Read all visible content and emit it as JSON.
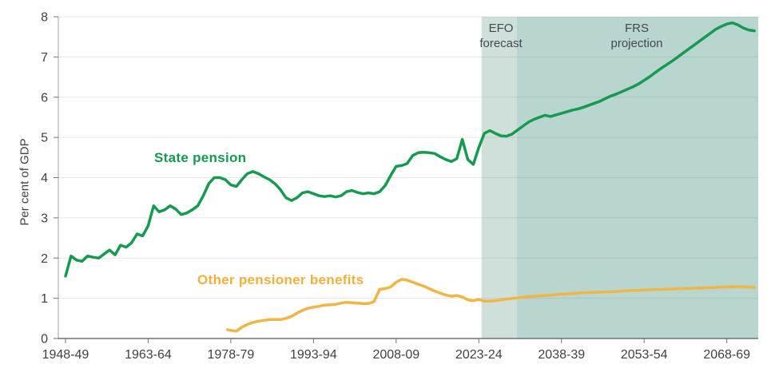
{
  "colors": {
    "state_pension_line": "#169a4f",
    "other_benefits_line": "#f0b545",
    "efo_band": "#cfe0db",
    "frs_band": "#b8d6cf",
    "gridline": "#e9eaec",
    "axis_line": "#6f7378",
    "y_axis_line": "#9fa2a7",
    "tick_text": "#3e4147",
    "region_label_text": "#43474f"
  },
  "chart_data": {
    "type": "line",
    "title": "",
    "ylabel": "Per cent of GDP",
    "xlabel": "",
    "ylim": [
      0,
      8
    ],
    "yticks": [
      0,
      1,
      2,
      3,
      4,
      5,
      6,
      7,
      8
    ],
    "x_domain": [
      1946.7,
      2073.7
    ],
    "grid": "horizontal",
    "legend_position": "inline-labels",
    "xticks": [
      {
        "year": 1948,
        "label": "1948-49"
      },
      {
        "year": 1963,
        "label": "1963-64"
      },
      {
        "year": 1978,
        "label": "1978-79"
      },
      {
        "year": 1993,
        "label": "1993-94"
      },
      {
        "year": 2008,
        "label": "2008-09"
      },
      {
        "year": 2023,
        "label": "2023-24"
      },
      {
        "year": 2038,
        "label": "2038-39"
      },
      {
        "year": 2053,
        "label": "2053-54"
      },
      {
        "year": 2068,
        "label": "2068-69"
      }
    ],
    "regions": [
      {
        "name": "EFO forecast",
        "label": "EFO\nforecast",
        "from": 2023.5,
        "to": 2029.9,
        "color": "#cfe0db"
      },
      {
        "name": "FRS projection",
        "label": "FRS\nprojection",
        "from": 2029.9,
        "to": 2073.7,
        "color": "#b8d6cf"
      }
    ],
    "series": [
      {
        "name": "State pension",
        "color": "#169a4f",
        "points": [
          [
            1948,
            1.55
          ],
          [
            1949,
            2.05
          ],
          [
            1950,
            1.95
          ],
          [
            1951,
            1.92
          ],
          [
            1952,
            2.05
          ],
          [
            1953,
            2.02
          ],
          [
            1954,
            2.0
          ],
          [
            1955,
            2.1
          ],
          [
            1956,
            2.2
          ],
          [
            1957,
            2.08
          ],
          [
            1958,
            2.32
          ],
          [
            1959,
            2.27
          ],
          [
            1960,
            2.38
          ],
          [
            1961,
            2.6
          ],
          [
            1962,
            2.55
          ],
          [
            1963,
            2.8
          ],
          [
            1964,
            3.3
          ],
          [
            1965,
            3.15
          ],
          [
            1966,
            3.2
          ],
          [
            1967,
            3.3
          ],
          [
            1968,
            3.22
          ],
          [
            1969,
            3.08
          ],
          [
            1970,
            3.12
          ],
          [
            1971,
            3.2
          ],
          [
            1972,
            3.3
          ],
          [
            1973,
            3.55
          ],
          [
            1974,
            3.85
          ],
          [
            1975,
            4.0
          ],
          [
            1976,
            4.0
          ],
          [
            1977,
            3.95
          ],
          [
            1978,
            3.82
          ],
          [
            1979,
            3.78
          ],
          [
            1980,
            3.95
          ],
          [
            1981,
            4.1
          ],
          [
            1982,
            4.15
          ],
          [
            1983,
            4.1
          ],
          [
            1984,
            4.02
          ],
          [
            1985,
            3.95
          ],
          [
            1986,
            3.85
          ],
          [
            1987,
            3.7
          ],
          [
            1988,
            3.5
          ],
          [
            1989,
            3.43
          ],
          [
            1990,
            3.5
          ],
          [
            1991,
            3.62
          ],
          [
            1992,
            3.65
          ],
          [
            1993,
            3.6
          ],
          [
            1994,
            3.55
          ],
          [
            1995,
            3.53
          ],
          [
            1996,
            3.55
          ],
          [
            1997,
            3.52
          ],
          [
            1998,
            3.55
          ],
          [
            1999,
            3.65
          ],
          [
            2000,
            3.68
          ],
          [
            2001,
            3.63
          ],
          [
            2002,
            3.6
          ],
          [
            2003,
            3.62
          ],
          [
            2004,
            3.6
          ],
          [
            2005,
            3.65
          ],
          [
            2006,
            3.8
          ],
          [
            2007,
            4.05
          ],
          [
            2008,
            4.28
          ],
          [
            2009,
            4.3
          ],
          [
            2010,
            4.35
          ],
          [
            2011,
            4.55
          ],
          [
            2012,
            4.62
          ],
          [
            2013,
            4.63
          ],
          [
            2014,
            4.62
          ],
          [
            2015,
            4.6
          ],
          [
            2016,
            4.52
          ],
          [
            2017,
            4.45
          ],
          [
            2018,
            4.4
          ],
          [
            2019,
            4.47
          ],
          [
            2020,
            4.95
          ],
          [
            2021,
            4.45
          ],
          [
            2022,
            4.33
          ],
          [
            2023,
            4.75
          ],
          [
            2024,
            5.1
          ],
          [
            2025,
            5.17
          ],
          [
            2026,
            5.1
          ],
          [
            2027,
            5.04
          ],
          [
            2028,
            5.03
          ],
          [
            2029,
            5.08
          ],
          [
            2030,
            5.18
          ],
          [
            2031,
            5.28
          ],
          [
            2032,
            5.38
          ],
          [
            2033,
            5.45
          ],
          [
            2034,
            5.5
          ],
          [
            2035,
            5.55
          ],
          [
            2036,
            5.52
          ],
          [
            2037,
            5.56
          ],
          [
            2038,
            5.6
          ],
          [
            2039,
            5.64
          ],
          [
            2040,
            5.68
          ],
          [
            2041,
            5.71
          ],
          [
            2042,
            5.75
          ],
          [
            2043,
            5.8
          ],
          [
            2044,
            5.85
          ],
          [
            2045,
            5.9
          ],
          [
            2046,
            5.97
          ],
          [
            2047,
            6.03
          ],
          [
            2048,
            6.08
          ],
          [
            2049,
            6.14
          ],
          [
            2050,
            6.2
          ],
          [
            2051,
            6.26
          ],
          [
            2052,
            6.33
          ],
          [
            2053,
            6.42
          ],
          [
            2054,
            6.51
          ],
          [
            2055,
            6.61
          ],
          [
            2056,
            6.71
          ],
          [
            2057,
            6.8
          ],
          [
            2058,
            6.89
          ],
          [
            2059,
            6.99
          ],
          [
            2060,
            7.09
          ],
          [
            2061,
            7.19
          ],
          [
            2062,
            7.29
          ],
          [
            2063,
            7.39
          ],
          [
            2064,
            7.49
          ],
          [
            2065,
            7.59
          ],
          [
            2066,
            7.69
          ],
          [
            2067,
            7.76
          ],
          [
            2068,
            7.82
          ],
          [
            2069,
            7.85
          ],
          [
            2070,
            7.8
          ],
          [
            2071,
            7.72
          ],
          [
            2072,
            7.67
          ],
          [
            2073,
            7.65
          ]
        ]
      },
      {
        "name": "Other pensioner benefits",
        "color": "#f0b545",
        "points": [
          [
            1977.4,
            0.22
          ],
          [
            1978,
            0.2
          ],
          [
            1979,
            0.18
          ],
          [
            1980,
            0.28
          ],
          [
            1981,
            0.35
          ],
          [
            1982,
            0.4
          ],
          [
            1983,
            0.43
          ],
          [
            1984,
            0.45
          ],
          [
            1985,
            0.47
          ],
          [
            1986,
            0.47
          ],
          [
            1987,
            0.47
          ],
          [
            1988,
            0.5
          ],
          [
            1989,
            0.55
          ],
          [
            1990,
            0.63
          ],
          [
            1991,
            0.7
          ],
          [
            1992,
            0.75
          ],
          [
            1993,
            0.78
          ],
          [
            1994,
            0.8
          ],
          [
            1995,
            0.83
          ],
          [
            1996,
            0.84
          ],
          [
            1997,
            0.85
          ],
          [
            1998,
            0.88
          ],
          [
            1999,
            0.9
          ],
          [
            2000,
            0.89
          ],
          [
            2001,
            0.88
          ],
          [
            2002,
            0.87
          ],
          [
            2003,
            0.87
          ],
          [
            2004,
            0.92
          ],
          [
            2005,
            1.22
          ],
          [
            2006,
            1.24
          ],
          [
            2007,
            1.28
          ],
          [
            2008,
            1.4
          ],
          [
            2009,
            1.47
          ],
          [
            2010,
            1.45
          ],
          [
            2011,
            1.4
          ],
          [
            2012,
            1.35
          ],
          [
            2013,
            1.3
          ],
          [
            2014,
            1.24
          ],
          [
            2015,
            1.18
          ],
          [
            2016,
            1.13
          ],
          [
            2017,
            1.08
          ],
          [
            2018,
            1.05
          ],
          [
            2019,
            1.07
          ],
          [
            2020,
            1.03
          ],
          [
            2021,
            0.96
          ],
          [
            2022,
            0.94
          ],
          [
            2023,
            0.97
          ],
          [
            2024,
            0.93
          ],
          [
            2025,
            0.93
          ],
          [
            2026,
            0.94
          ],
          [
            2027,
            0.96
          ],
          [
            2028,
            0.98
          ],
          [
            2030,
            1.01
          ],
          [
            2032,
            1.04
          ],
          [
            2034,
            1.06
          ],
          [
            2036,
            1.08
          ],
          [
            2038,
            1.1
          ],
          [
            2040,
            1.12
          ],
          [
            2042,
            1.14
          ],
          [
            2044,
            1.15
          ],
          [
            2046,
            1.16
          ],
          [
            2048,
            1.17
          ],
          [
            2050,
            1.19
          ],
          [
            2052,
            1.2
          ],
          [
            2054,
            1.21
          ],
          [
            2056,
            1.22
          ],
          [
            2058,
            1.23
          ],
          [
            2060,
            1.24
          ],
          [
            2062,
            1.25
          ],
          [
            2064,
            1.26
          ],
          [
            2066,
            1.27
          ],
          [
            2068,
            1.28
          ],
          [
            2070,
            1.29
          ],
          [
            2071,
            1.285
          ],
          [
            2072,
            1.28
          ],
          [
            2073,
            1.27
          ]
        ]
      }
    ]
  }
}
